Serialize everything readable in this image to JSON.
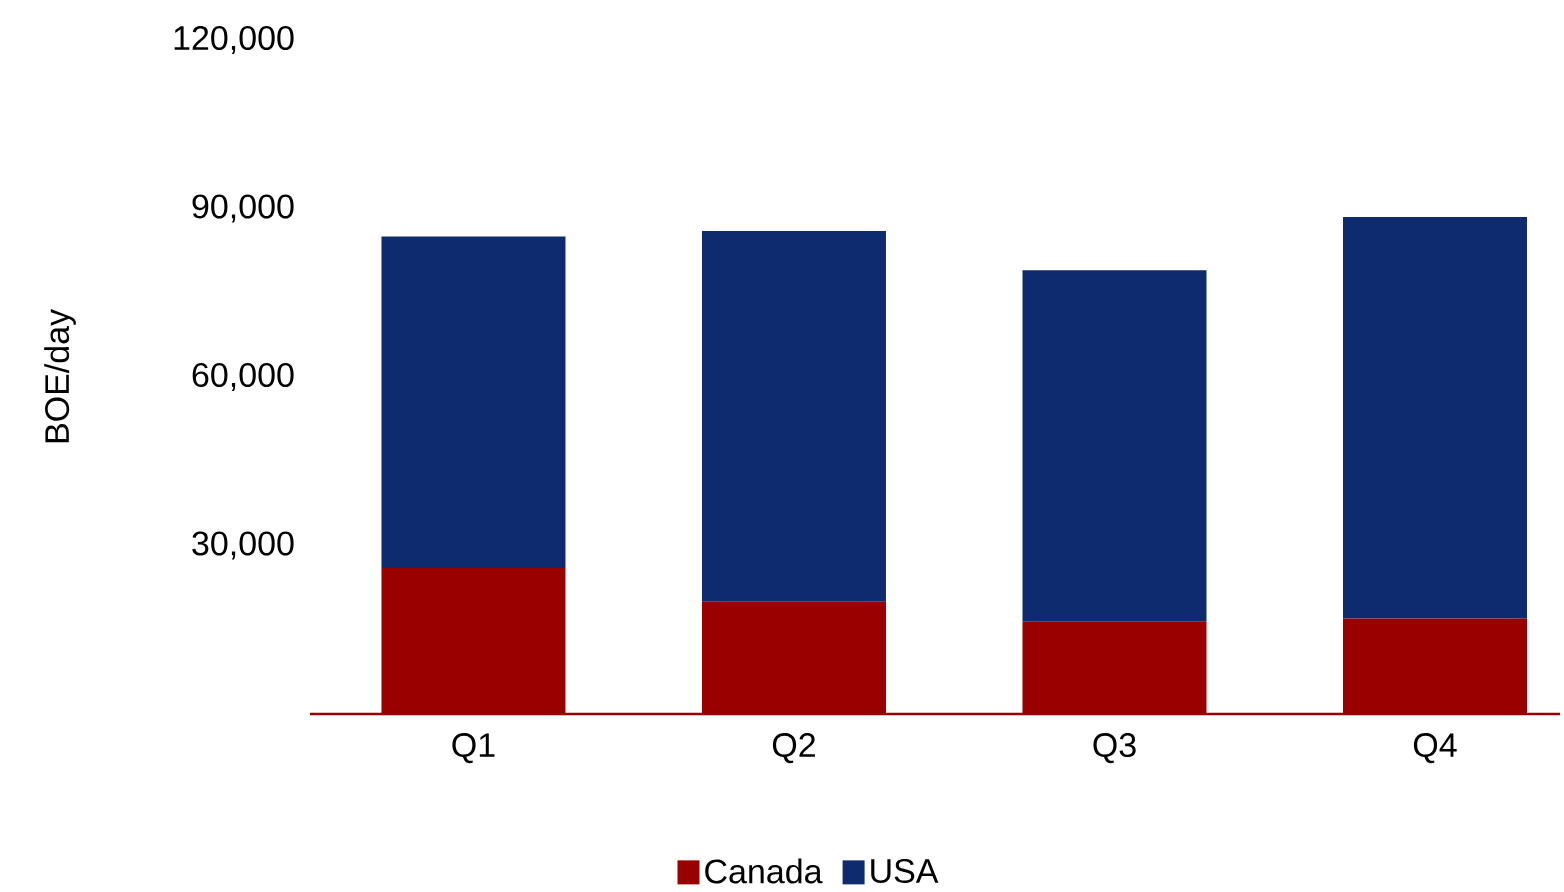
{
  "chart_data": {
    "type": "bar",
    "stacked": true,
    "ylabel": "BOE/day",
    "categories": [
      "Q1",
      "Q2",
      "Q3",
      "Q4"
    ],
    "series": [
      {
        "name": "Canada",
        "color": "#990000",
        "values": [
          26000,
          20000,
          16500,
          17000
        ]
      },
      {
        "name": "USA",
        "color": "#0d2b6e",
        "values": [
          59000,
          66000,
          62500,
          71500
        ]
      }
    ],
    "ylim": [
      0,
      120000
    ],
    "yticks": [
      {
        "value": 30000,
        "label": "30,000"
      },
      {
        "value": 60000,
        "label": "60,000"
      },
      {
        "value": 90000,
        "label": "90,000"
      },
      {
        "value": 120000,
        "label": "120,000"
      }
    ],
    "legend": "bottom"
  }
}
